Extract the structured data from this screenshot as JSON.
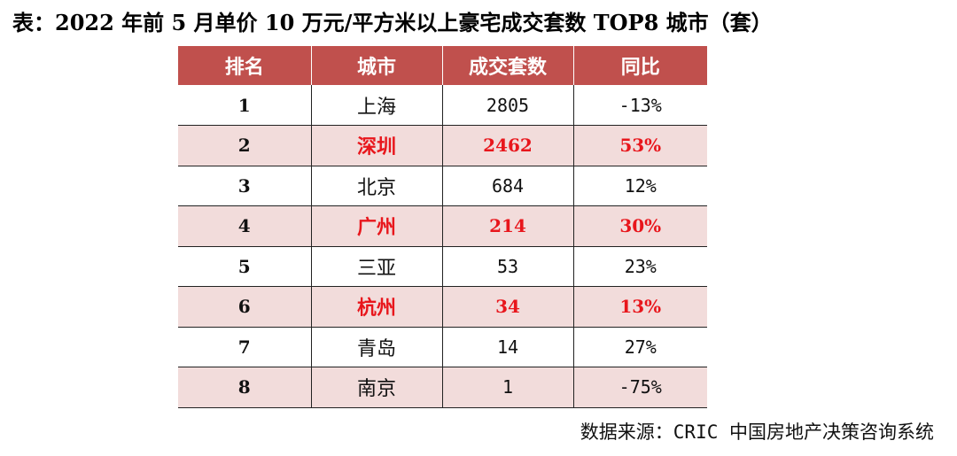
{
  "title": "表：2022 年前 5 月单价 10 万元/平方米以上豪宅成交套数 TOP8 城市（套）",
  "table": {
    "headers": [
      "排名",
      "城市",
      "成交套数",
      "同比"
    ],
    "rows": [
      {
        "rank": "1",
        "city": "上海",
        "deals": "2805",
        "yoy": "-13%",
        "highlight": false
      },
      {
        "rank": "2",
        "city": "深圳",
        "deals": "2462",
        "yoy": "53%",
        "highlight": true
      },
      {
        "rank": "3",
        "city": "北京",
        "deals": "684",
        "yoy": "12%",
        "highlight": false
      },
      {
        "rank": "4",
        "city": "广州",
        "deals": "214",
        "yoy": "30%",
        "highlight": true
      },
      {
        "rank": "5",
        "city": "三亚",
        "deals": "53",
        "yoy": "23%",
        "highlight": false
      },
      {
        "rank": "6",
        "city": "杭州",
        "deals": "34",
        "yoy": "13%",
        "highlight": true
      },
      {
        "rank": "7",
        "city": "青岛",
        "deals": "14",
        "yoy": "27%",
        "highlight": false
      },
      {
        "rank": "8",
        "city": "南京",
        "deals": "1",
        "yoy": "-75%",
        "highlight": false
      }
    ]
  },
  "source": "数据来源：CRIC 中国房地产决策咨询系统",
  "colors": {
    "header_bg": "#c0504d",
    "stripe_bg": "#f2dcdb",
    "highlight_text": "#e8161c"
  }
}
